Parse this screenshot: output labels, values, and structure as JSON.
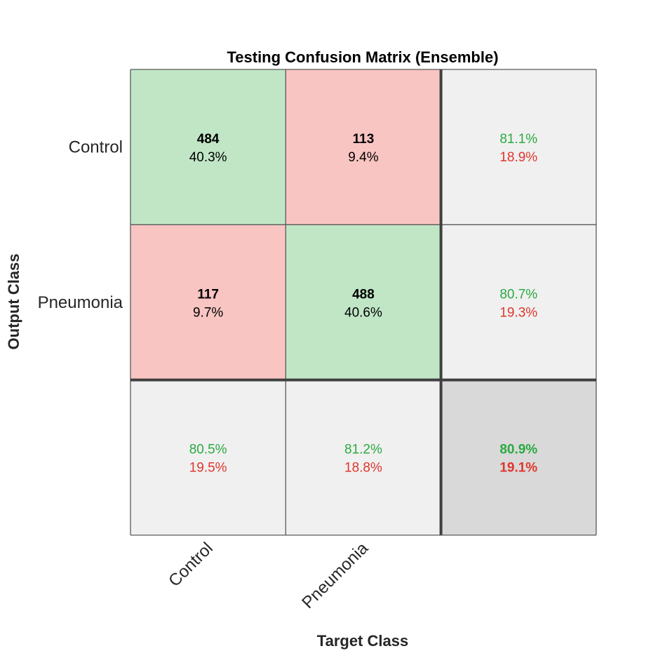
{
  "colors": {
    "correct_cell": "#c0e6c6",
    "incorrect_cell": "#f8c5c2",
    "summary_cell": "#f0f0f0",
    "overall_cell": "#d9d9d9",
    "grid_line": "#595959",
    "separator_line": "#404040",
    "good_text": "#2aaa41",
    "bad_text": "#e0362d"
  },
  "chart_data": {
    "type": "heatmap",
    "title": "Testing Confusion Matrix (Ensemble)",
    "xlabel": "Target Class",
    "ylabel": "Output Class",
    "classes": [
      "Control",
      "Pneumonia"
    ],
    "counts": [
      [
        484,
        113
      ],
      [
        117,
        488
      ]
    ],
    "percents": [
      [
        "40.3%",
        "9.4%"
      ],
      [
        "9.7%",
        "40.6%"
      ]
    ],
    "row_summary": [
      {
        "correct": "81.1%",
        "incorrect": "18.9%"
      },
      {
        "correct": "80.7%",
        "incorrect": "19.3%"
      }
    ],
    "col_summary": [
      {
        "correct": "80.5%",
        "incorrect": "19.5%"
      },
      {
        "correct": "81.2%",
        "incorrect": "18.8%"
      }
    ],
    "overall": {
      "correct": "80.9%",
      "incorrect": "19.1%"
    }
  }
}
